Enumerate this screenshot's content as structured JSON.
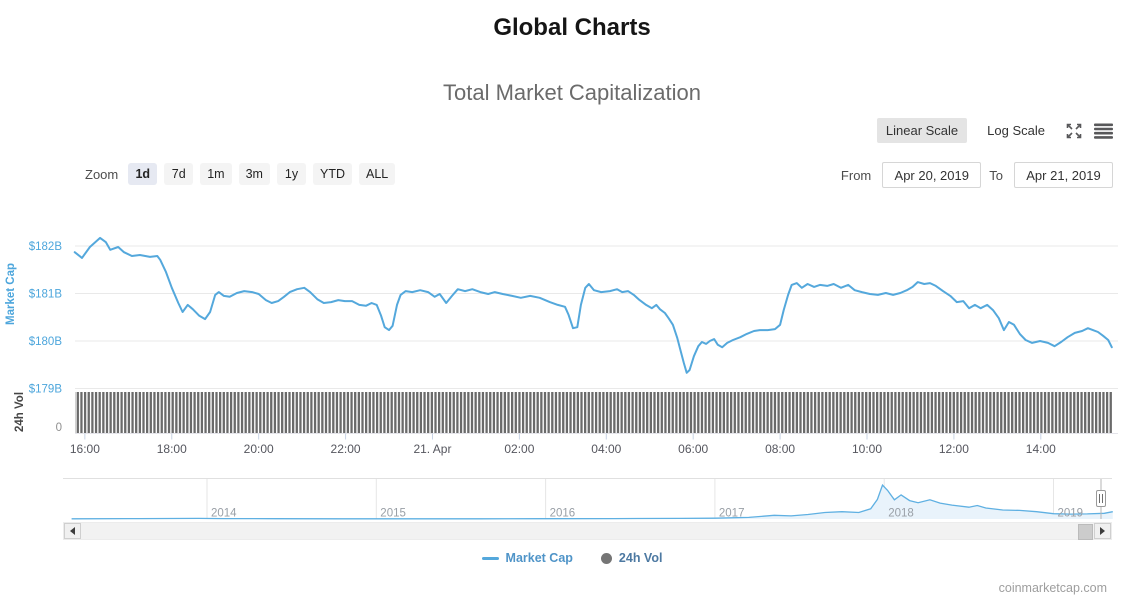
{
  "page": {
    "title": "Global Charts",
    "watermark": "coinmarketcap.com"
  },
  "chart": {
    "title": "Total Market Capitalization",
    "scale_toggle": {
      "linear": "Linear Scale",
      "log": "Log Scale",
      "selected": "Linear Scale"
    },
    "range_selector": {
      "zoom_label": "Zoom",
      "buttons": [
        "1d",
        "7d",
        "1m",
        "3m",
        "1y",
        "YTD",
        "ALL"
      ],
      "selected": "1d",
      "from_label": "From",
      "from_value": "Apr 20, 2019",
      "to_label": "To",
      "to_value": "Apr 21, 2019"
    },
    "y_axis": {
      "title": "Market Cap",
      "labels": [
        "$182B",
        "$181B",
        "$180B",
        "$179B"
      ]
    },
    "y_axis2": {
      "title": "24h Vol",
      "labels": [
        "0"
      ]
    },
    "x_axis": {
      "labels": [
        "16:00",
        "18:00",
        "20:00",
        "22:00",
        "21. Apr",
        "02:00",
        "04:00",
        "06:00",
        "08:00",
        "10:00",
        "12:00",
        "14:00"
      ]
    },
    "navigator": {
      "year_labels": [
        "2014",
        "2015",
        "2016",
        "2017",
        "2018",
        "2019"
      ]
    },
    "legend": [
      {
        "name": "Market Cap",
        "marker": "line",
        "color": "#54A8DC"
      },
      {
        "name": "24h Vol",
        "marker": "dot",
        "color": "#757575"
      }
    ],
    "colors": {
      "line_blue": "#54A8DC",
      "axis_blue": "#4DA6DC",
      "volume_gray": "#6A6A6A",
      "grid": "#e8e8e8",
      "nav_fill": "#e9f3fb",
      "selected_zoom_bg": "#e6e9f2",
      "selected_scale_bg": "#e4e4e4"
    }
  },
  "chart_data": {
    "type": "line",
    "title": "Total Market Capitalization",
    "y_axis": {
      "title": "Market Cap",
      "tick_labels": [
        "$182B",
        "$181B",
        "$180B",
        "$179B"
      ],
      "range_B": [
        178.9,
        182.55
      ]
    },
    "y_axis2": {
      "title": "24h Vol",
      "tick_labels": [
        "0"
      ]
    },
    "x_axis": {
      "start": "Apr 20, 2019 15:45",
      "end": "Apr 21, 2019 15:45",
      "tick_interval": "2 hours",
      "tick_labels": [
        "16:00",
        "18:00",
        "20:00",
        "22:00",
        "21. Apr",
        "02:00",
        "04:00",
        "06:00",
        "08:00",
        "10:00",
        "12:00",
        "14:00"
      ]
    },
    "series": [
      {
        "name": "Market Cap",
        "type": "line",
        "color": "#54A8DC",
        "unit": "USD billions",
        "t_unit": "minutes since Apr 20, 2019 15:45",
        "points": [
          [
            1,
            181.87
          ],
          [
            11,
            181.75
          ],
          [
            22,
            181.98
          ],
          [
            36,
            182.17
          ],
          [
            44,
            182.08
          ],
          [
            50,
            181.92
          ],
          [
            61,
            181.98
          ],
          [
            69,
            181.87
          ],
          [
            80,
            181.79
          ],
          [
            91,
            181.81
          ],
          [
            105,
            181.77
          ],
          [
            115,
            181.79
          ],
          [
            119,
            181.71
          ],
          [
            127,
            181.45
          ],
          [
            135,
            181.12
          ],
          [
            144,
            180.8
          ],
          [
            150,
            180.61
          ],
          [
            157,
            180.76
          ],
          [
            164,
            180.67
          ],
          [
            173,
            180.53
          ],
          [
            181,
            180.46
          ],
          [
            188,
            180.61
          ],
          [
            195,
            180.97
          ],
          [
            200,
            181.03
          ],
          [
            207,
            180.95
          ],
          [
            215,
            180.93
          ],
          [
            225,
            181.01
          ],
          [
            235,
            181.05
          ],
          [
            246,
            181.03
          ],
          [
            255,
            180.99
          ],
          [
            265,
            180.86
          ],
          [
            273,
            180.8
          ],
          [
            282,
            180.84
          ],
          [
            290,
            180.93
          ],
          [
            298,
            181.03
          ],
          [
            308,
            181.09
          ],
          [
            318,
            181.12
          ],
          [
            326,
            181.03
          ],
          [
            336,
            180.88
          ],
          [
            345,
            180.8
          ],
          [
            355,
            180.82
          ],
          [
            365,
            180.86
          ],
          [
            374,
            180.84
          ],
          [
            384,
            180.84
          ],
          [
            394,
            180.76
          ],
          [
            403,
            180.74
          ],
          [
            411,
            180.8
          ],
          [
            418,
            180.76
          ],
          [
            424,
            180.53
          ],
          [
            429,
            180.29
          ],
          [
            435,
            180.23
          ],
          [
            440,
            180.32
          ],
          [
            446,
            180.76
          ],
          [
            451,
            180.97
          ],
          [
            458,
            181.05
          ],
          [
            467,
            181.03
          ],
          [
            478,
            181.07
          ],
          [
            489,
            181.03
          ],
          [
            498,
            180.93
          ],
          [
            505,
            180.99
          ],
          [
            514,
            180.8
          ],
          [
            522,
            180.95
          ],
          [
            530,
            181.09
          ],
          [
            540,
            181.05
          ],
          [
            550,
            181.09
          ],
          [
            561,
            181.03
          ],
          [
            572,
            180.99
          ],
          [
            581,
            181.03
          ],
          [
            592,
            180.99
          ],
          [
            605,
            180.95
          ],
          [
            617,
            180.91
          ],
          [
            630,
            180.95
          ],
          [
            643,
            180.91
          ],
          [
            657,
            180.82
          ],
          [
            668,
            180.76
          ],
          [
            678,
            180.72
          ],
          [
            683,
            180.55
          ],
          [
            689,
            180.27
          ],
          [
            695,
            180.29
          ],
          [
            700,
            180.76
          ],
          [
            706,
            181.12
          ],
          [
            711,
            181.2
          ],
          [
            718,
            181.07
          ],
          [
            728,
            181.03
          ],
          [
            740,
            181.05
          ],
          [
            750,
            181.09
          ],
          [
            757,
            181.03
          ],
          [
            765,
            181.05
          ],
          [
            773,
            180.97
          ],
          [
            781,
            180.86
          ],
          [
            790,
            180.76
          ],
          [
            798,
            180.69
          ],
          [
            804,
            180.76
          ],
          [
            809,
            180.67
          ],
          [
            816,
            180.59
          ],
          [
            821,
            180.48
          ],
          [
            827,
            180.34
          ],
          [
            833,
            180.06
          ],
          [
            838,
            179.77
          ],
          [
            842,
            179.54
          ],
          [
            846,
            179.33
          ],
          [
            850,
            179.39
          ],
          [
            856,
            179.68
          ],
          [
            862,
            179.89
          ],
          [
            867,
            179.98
          ],
          [
            873,
            179.94
          ],
          [
            878,
            180.0
          ],
          [
            884,
            180.04
          ],
          [
            889,
            179.92
          ],
          [
            895,
            179.87
          ],
          [
            902,
            179.96
          ],
          [
            910,
            180.02
          ],
          [
            920,
            180.08
          ],
          [
            929,
            180.15
          ],
          [
            939,
            180.21
          ],
          [
            947,
            180.23
          ],
          [
            958,
            180.23
          ],
          [
            968,
            180.25
          ],
          [
            975,
            180.34
          ],
          [
            980,
            180.65
          ],
          [
            986,
            180.97
          ],
          [
            991,
            181.18
          ],
          [
            998,
            181.22
          ],
          [
            1005,
            181.12
          ],
          [
            1013,
            181.2
          ],
          [
            1022,
            181.14
          ],
          [
            1030,
            181.18
          ],
          [
            1040,
            181.16
          ],
          [
            1049,
            181.2
          ],
          [
            1059,
            181.12
          ],
          [
            1069,
            181.18
          ],
          [
            1078,
            181.07
          ],
          [
            1088,
            181.03
          ],
          [
            1099,
            180.99
          ],
          [
            1110,
            180.97
          ],
          [
            1121,
            181.01
          ],
          [
            1131,
            180.97
          ],
          [
            1141,
            181.01
          ],
          [
            1150,
            181.07
          ],
          [
            1158,
            181.14
          ],
          [
            1165,
            181.24
          ],
          [
            1174,
            181.2
          ],
          [
            1182,
            181.22
          ],
          [
            1190,
            181.16
          ],
          [
            1200,
            181.05
          ],
          [
            1210,
            180.95
          ],
          [
            1219,
            180.82
          ],
          [
            1228,
            180.84
          ],
          [
            1236,
            180.69
          ],
          [
            1244,
            180.76
          ],
          [
            1252,
            180.69
          ],
          [
            1261,
            180.76
          ],
          [
            1269,
            180.65
          ],
          [
            1277,
            180.48
          ],
          [
            1284,
            180.23
          ],
          [
            1291,
            180.4
          ],
          [
            1298,
            180.34
          ],
          [
            1306,
            180.15
          ],
          [
            1314,
            180.02
          ],
          [
            1323,
            179.96
          ],
          [
            1334,
            180.0
          ],
          [
            1345,
            179.96
          ],
          [
            1354,
            179.89
          ],
          [
            1363,
            179.98
          ],
          [
            1372,
            180.08
          ],
          [
            1382,
            180.17
          ],
          [
            1392,
            180.21
          ],
          [
            1400,
            180.27
          ],
          [
            1407,
            180.23
          ],
          [
            1414,
            180.19
          ],
          [
            1421,
            180.11
          ],
          [
            1428,
            180.02
          ],
          [
            1433,
            179.87
          ]
        ]
      },
      {
        "name": "24h Vol",
        "type": "column",
        "color": "#6A6A6A",
        "note": "dense uniform-height bars across full range; numeric values not labeled on chart; axis baseline tick is 0"
      }
    ],
    "navigator": {
      "name": "Market Cap (all time)",
      "unit": "USD billions",
      "x_unit": "year (fractional)",
      "year_labels": [
        "2014",
        "2015",
        "2016",
        "2017",
        "2018",
        "2019"
      ],
      "points": [
        [
          2013.2,
          5
        ],
        [
          2013.6,
          10
        ],
        [
          2013.95,
          15
        ],
        [
          2014.1,
          11
        ],
        [
          2014.4,
          7
        ],
        [
          2014.8,
          5
        ],
        [
          2015.2,
          4
        ],
        [
          2015.6,
          5
        ],
        [
          2016.0,
          8
        ],
        [
          2016.4,
          11
        ],
        [
          2016.8,
          14
        ],
        [
          2017.0,
          20
        ],
        [
          2017.2,
          40
        ],
        [
          2017.35,
          90
        ],
        [
          2017.45,
          75
        ],
        [
          2017.55,
          110
        ],
        [
          2017.65,
          160
        ],
        [
          2017.75,
          180
        ],
        [
          2017.85,
          160
        ],
        [
          2017.92,
          250
        ],
        [
          2017.96,
          480
        ],
        [
          2017.99,
          830
        ],
        [
          2018.02,
          700
        ],
        [
          2018.06,
          470
        ],
        [
          2018.1,
          590
        ],
        [
          2018.15,
          450
        ],
        [
          2018.2,
          400
        ],
        [
          2018.27,
          470
        ],
        [
          2018.33,
          390
        ],
        [
          2018.4,
          340
        ],
        [
          2018.5,
          290
        ],
        [
          2018.55,
          330
        ],
        [
          2018.6,
          270
        ],
        [
          2018.7,
          220
        ],
        [
          2018.8,
          210
        ],
        [
          2018.9,
          180
        ],
        [
          2019.0,
          130
        ],
        [
          2019.1,
          120
        ],
        [
          2019.2,
          125
        ],
        [
          2019.3,
          140
        ],
        [
          2019.35,
          180
        ]
      ]
    }
  }
}
